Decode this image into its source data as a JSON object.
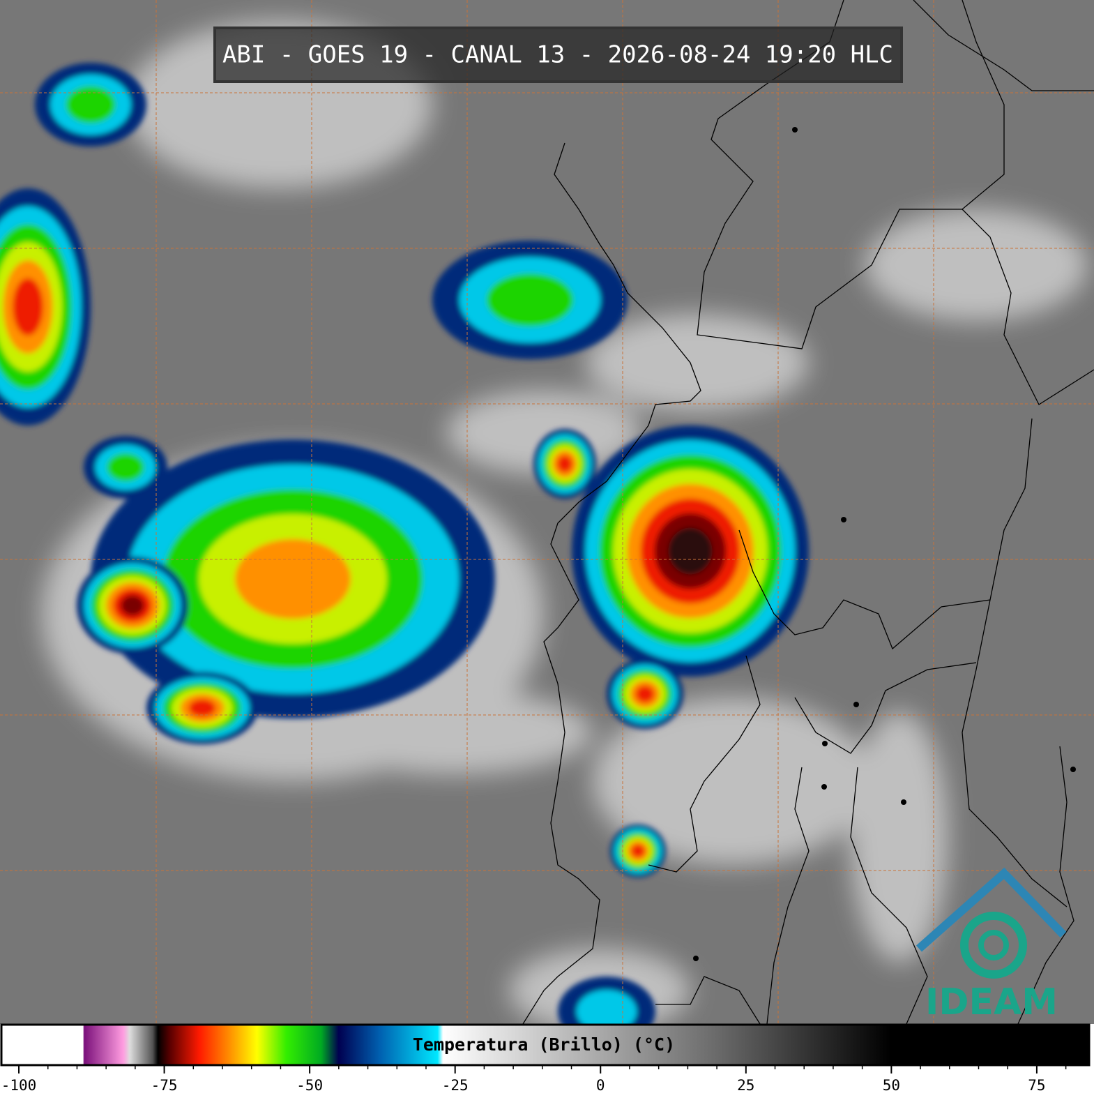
{
  "header": {
    "title": "ABI - GOES 19 - CANAL 13 - 2026-08-24 19:20 HLC"
  },
  "colorbar": {
    "label": "Temperatura (Brillo) (°C)",
    "range": [
      -103,
      84
    ],
    "ticks": [
      -100,
      -75,
      -50,
      -25,
      0,
      25,
      50,
      75
    ]
  },
  "logo": {
    "text": "IDEAM"
  }
}
